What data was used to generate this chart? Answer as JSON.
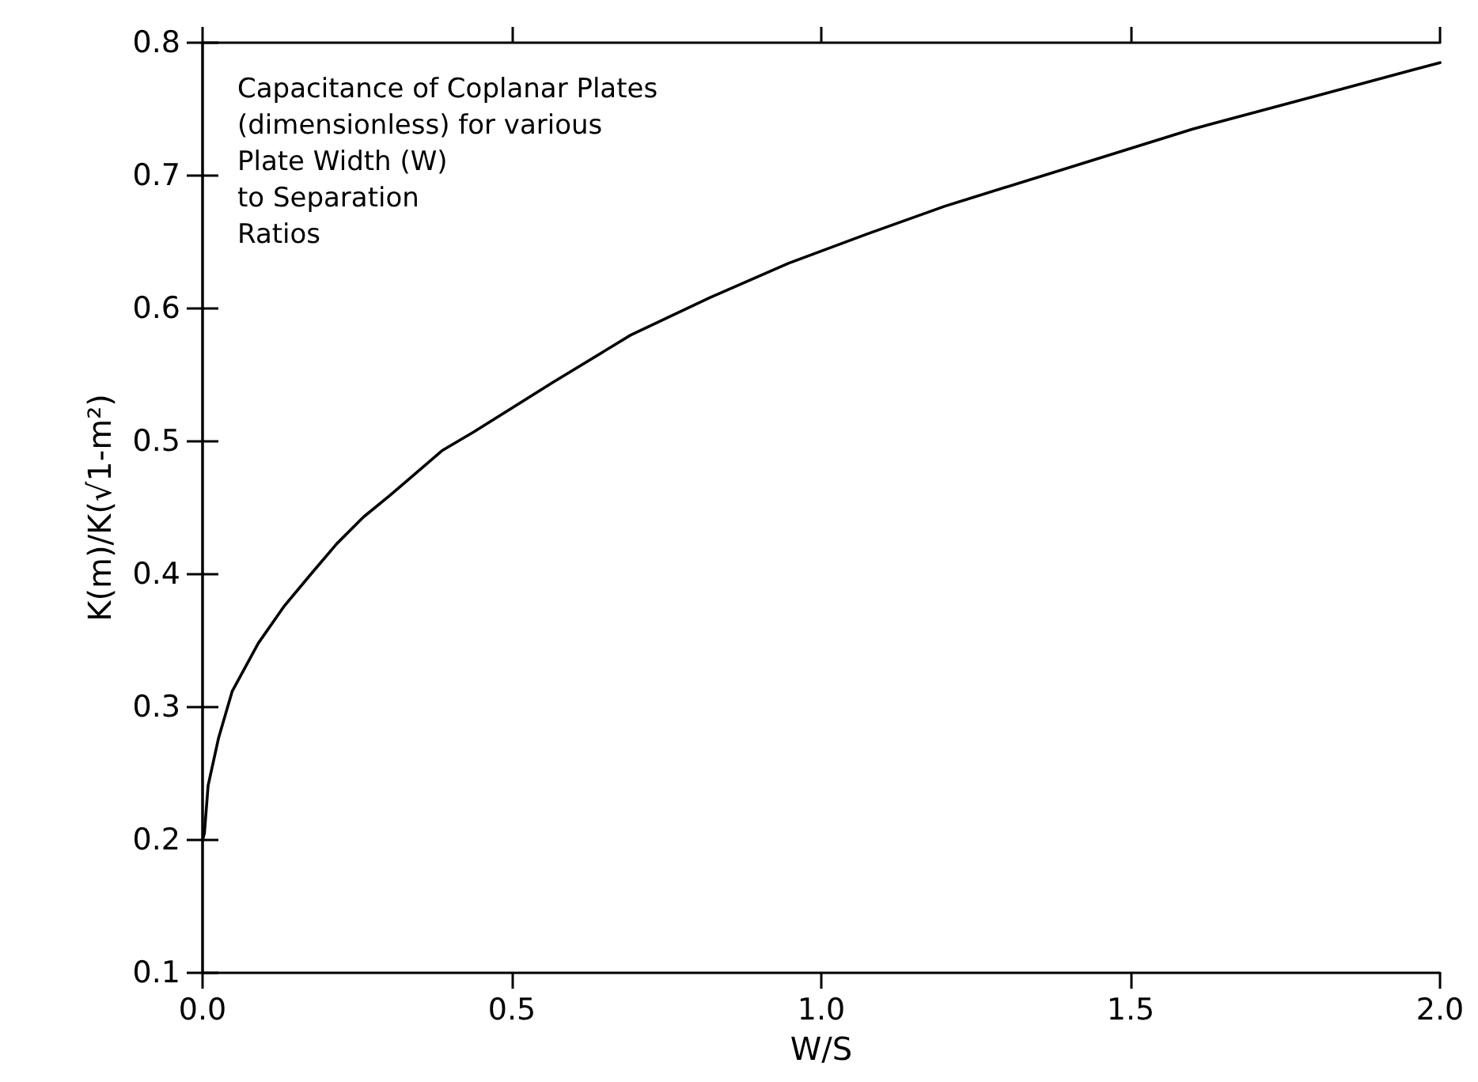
{
  "chart_data": {
    "type": "line",
    "annotations": [
      "Capacitance of Coplanar Plates\n(dimensionless) for various\nPlate Width (W)\nto Separation\nRatios"
    ],
    "xlabel": "W/S",
    "ylabel": "K(m)/K(√1-m²)",
    "x": [
      0,
      0.003,
      0.009,
      0.026,
      0.048,
      0.09,
      0.132,
      0.175,
      0.217,
      0.26,
      0.302,
      0.387,
      0.438,
      0.565,
      0.692,
      0.819,
      0.947,
      1.074,
      1.2,
      1.4,
      1.6,
      1.8,
      2.0
    ],
    "series": [
      {
        "color": "#000000",
        "values": [
          0.2,
          0.205,
          0.241,
          0.277,
          0.312,
          0.348,
          0.376,
          0.4,
          0.423,
          0.443,
          0.459,
          0.493,
          0.507,
          0.544,
          0.58,
          0.608,
          0.634,
          0.656,
          0.677,
          0.706,
          0.735,
          0.76,
          0.785
        ]
      }
    ],
    "xlim": [
      0,
      2
    ],
    "xticks": [
      {
        "value": 0,
        "label": "0.0"
      },
      0.5,
      {
        "value": 1,
        "label": "1.0"
      },
      1.5,
      {
        "value": 2,
        "label": "2.0"
      }
    ],
    "ylim": [
      0.1,
      0.8
    ],
    "yticks": [
      0.1,
      0.2,
      0.3,
      0.4,
      0.5,
      0.6,
      0.7,
      0.8
    ],
    "grid": false,
    "marker": "none",
    "line_style": "solid"
  }
}
